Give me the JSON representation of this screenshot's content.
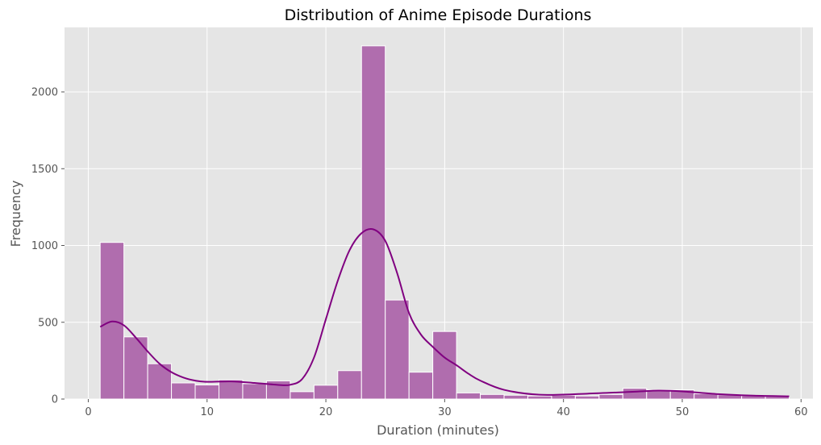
{
  "chart_data": {
    "type": "bar",
    "title": "Distribution of Anime Episode Durations",
    "xlabel": "Duration (minutes)",
    "ylabel": "Frequency",
    "xlim": [
      -2,
      61
    ],
    "ylim": [
      0,
      2420
    ],
    "xticks": [
      0,
      10,
      20,
      30,
      40,
      50,
      60
    ],
    "yticks": [
      0,
      500,
      1000,
      1500,
      2000
    ],
    "grid": true,
    "bin_start": 1,
    "bin_width": 2,
    "bins": [
      {
        "x0": 1,
        "x1": 3,
        "count": 1020
      },
      {
        "x0": 3,
        "x1": 5,
        "count": 405
      },
      {
        "x0": 5,
        "x1": 7,
        "count": 230
      },
      {
        "x0": 7,
        "x1": 9,
        "count": 105
      },
      {
        "x0": 9,
        "x1": 11,
        "count": 92
      },
      {
        "x0": 11,
        "x1": 13,
        "count": 125
      },
      {
        "x0": 13,
        "x1": 15,
        "count": 100
      },
      {
        "x0": 15,
        "x1": 17,
        "count": 118
      },
      {
        "x0": 17,
        "x1": 19,
        "count": 48
      },
      {
        "x0": 19,
        "x1": 21,
        "count": 90
      },
      {
        "x0": 21,
        "x1": 23,
        "count": 185
      },
      {
        "x0": 23,
        "x1": 25,
        "count": 2300
      },
      {
        "x0": 25,
        "x1": 27,
        "count": 645
      },
      {
        "x0": 27,
        "x1": 29,
        "count": 175
      },
      {
        "x0": 29,
        "x1": 31,
        "count": 440
      },
      {
        "x0": 31,
        "x1": 33,
        "count": 40
      },
      {
        "x0": 33,
        "x1": 35,
        "count": 30
      },
      {
        "x0": 35,
        "x1": 37,
        "count": 25
      },
      {
        "x0": 37,
        "x1": 39,
        "count": 20
      },
      {
        "x0": 39,
        "x1": 41,
        "count": 25
      },
      {
        "x0": 41,
        "x1": 43,
        "count": 20
      },
      {
        "x0": 43,
        "x1": 45,
        "count": 30
      },
      {
        "x0": 45,
        "x1": 47,
        "count": 70
      },
      {
        "x0": 47,
        "x1": 49,
        "count": 60
      },
      {
        "x0": 49,
        "x1": 51,
        "count": 60
      },
      {
        "x0": 51,
        "x1": 53,
        "count": 35
      },
      {
        "x0": 53,
        "x1": 55,
        "count": 28
      },
      {
        "x0": 55,
        "x1": 57,
        "count": 22
      },
      {
        "x0": 57,
        "x1": 59,
        "count": 18
      }
    ],
    "kde": {
      "x": [
        1,
        2,
        3,
        4,
        5,
        6,
        7,
        8,
        9,
        10,
        12,
        14,
        16,
        17,
        18,
        19,
        20,
        21,
        22,
        23,
        24,
        25,
        26,
        27,
        28,
        29,
        30,
        31,
        32,
        33,
        35,
        38,
        42,
        46,
        48,
        50,
        53,
        56,
        59
      ],
      "y": [
        470,
        505,
        480,
        400,
        310,
        230,
        175,
        140,
        120,
        112,
        115,
        105,
        92,
        93,
        130,
        270,
        520,
        770,
        970,
        1080,
        1105,
        1030,
        820,
        560,
        420,
        340,
        270,
        220,
        165,
        120,
        60,
        28,
        35,
        48,
        55,
        50,
        32,
        22,
        18
      ]
    },
    "colors": {
      "bar_fill": "#b06dae",
      "bar_edge": "#ffffff",
      "kde_line": "#800080",
      "plot_bg": "#e5e5e5",
      "grid": "#ffffff"
    }
  }
}
